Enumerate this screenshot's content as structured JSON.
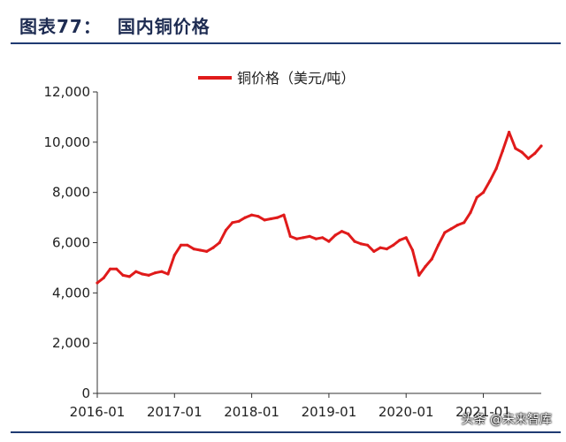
{
  "figure": {
    "label": "图表77：",
    "title": "国内铜价格"
  },
  "watermark": "头条 @未来智库",
  "colors": {
    "line": "#e01b1b",
    "title": "#1e2c52",
    "rule": "#1f3b72"
  },
  "chart_data": {
    "type": "line",
    "title": "",
    "xlabel": "",
    "ylabel": "",
    "legend": {
      "position": "top-center",
      "label": "铜价格（美元/吨）"
    },
    "grid": false,
    "ylim": [
      0,
      12000
    ],
    "y_ticks": [
      0,
      2000,
      4000,
      6000,
      8000,
      10000,
      12000
    ],
    "y_tick_labels": [
      "0",
      "2,000",
      "4,000",
      "6,000",
      "8,000",
      "10,000",
      "12,000"
    ],
    "xlim": [
      "2016-01",
      "2021-10"
    ],
    "x_tick_labels": [
      "2016-01",
      "2017-01",
      "2018-01",
      "2019-01",
      "2020-01",
      "2021-01"
    ],
    "series": [
      {
        "name": "铜价格（美元/吨）",
        "x": [
          "2016-01",
          "2016-02",
          "2016-03",
          "2016-04",
          "2016-05",
          "2016-06",
          "2016-07",
          "2016-08",
          "2016-09",
          "2016-10",
          "2016-11",
          "2016-12",
          "2017-01",
          "2017-02",
          "2017-03",
          "2017-04",
          "2017-05",
          "2017-06",
          "2017-07",
          "2017-08",
          "2017-09",
          "2017-10",
          "2017-11",
          "2017-12",
          "2018-01",
          "2018-02",
          "2018-03",
          "2018-04",
          "2018-05",
          "2018-06",
          "2018-07",
          "2018-08",
          "2018-09",
          "2018-10",
          "2018-11",
          "2018-12",
          "2019-01",
          "2019-02",
          "2019-03",
          "2019-04",
          "2019-05",
          "2019-06",
          "2019-07",
          "2019-08",
          "2019-09",
          "2019-10",
          "2019-11",
          "2019-12",
          "2020-01",
          "2020-02",
          "2020-03",
          "2020-04",
          "2020-05",
          "2020-06",
          "2020-07",
          "2020-08",
          "2020-09",
          "2020-10",
          "2020-11",
          "2020-12",
          "2021-01",
          "2021-02",
          "2021-03",
          "2021-04",
          "2021-05",
          "2021-06",
          "2021-07",
          "2021-08",
          "2021-09",
          "2021-10"
        ],
        "y": [
          4400,
          4600,
          4950,
          4950,
          4700,
          4650,
          4850,
          4750,
          4700,
          4800,
          4850,
          4750,
          5500,
          5900,
          5900,
          5750,
          5700,
          5650,
          5800,
          6000,
          6500,
          6800,
          6850,
          7000,
          7100,
          7050,
          6900,
          6950,
          7000,
          7100,
          6250,
          6150,
          6200,
          6250,
          6150,
          6200,
          6050,
          6300,
          6450,
          6350,
          6050,
          5950,
          5900,
          5650,
          5800,
          5750,
          5900,
          6100,
          6200,
          5700,
          4700,
          5050,
          5350,
          5900,
          6400,
          6550,
          6700,
          6800,
          7200,
          7800,
          8000,
          8450,
          8950,
          9650,
          10400,
          9750,
          9600,
          9350,
          9550,
          9850
        ]
      }
    ]
  }
}
